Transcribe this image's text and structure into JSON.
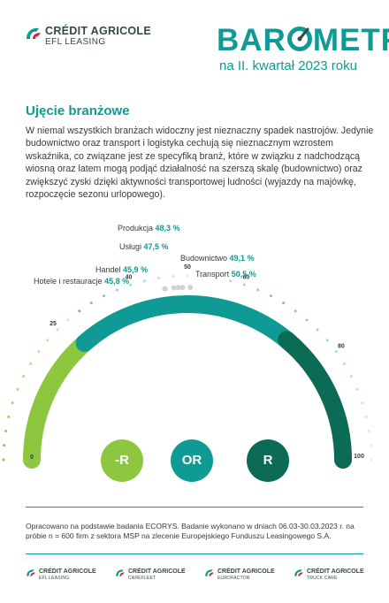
{
  "header": {
    "logo_line1": "CRÉDIT AGRICOLE",
    "logo_line2": "EFL LEASING",
    "title_pre": "BAR",
    "title_post": "METR",
    "subtitle": "na II. kwartał 2023 roku"
  },
  "section": {
    "heading": "Ujęcie branżowe",
    "paragraph": "W niemal wszystkich branżach widoczny jest nieznaczny spadek nastrojów. Jedynie budownictwo oraz transport i logistyka cechują się nieznacznym wzrostem wskaźnika, co związane jest ze specyfiką branż, które w związku z nadchodzącą wiosną oraz latem mogą podjąć działalność na szerszą skalę (budownictwo) oraz zwiększyć zyski dzięki aktywności transportowej ludności (wyjazdy na majówkę, rozpoczęcie sezonu urlopowego)."
  },
  "chart_data": {
    "type": "gauge",
    "range": [
      0,
      100
    ],
    "ticks": [
      "0",
      "25",
      "40",
      "50",
      "60",
      "80",
      "100"
    ],
    "zones": [
      {
        "label": "-R",
        "color": "#8dc63f"
      },
      {
        "label": "OR",
        "color": "#0f9a95"
      },
      {
        "label": "R",
        "color": "#0b6b54"
      }
    ],
    "sectors": [
      {
        "name": "Produkcja",
        "value": 48.3,
        "display": "48,3 %"
      },
      {
        "name": "Usługi",
        "value": 47.5,
        "display": "47,5 %"
      },
      {
        "name": "Budownictwo",
        "value": 49.1,
        "display": "49,1 %"
      },
      {
        "name": "Handel",
        "value": 45.9,
        "display": "45,9 %"
      },
      {
        "name": "Transport",
        "value": 50.5,
        "display": "50,5 %"
      },
      {
        "name": "Hotele i restauracje",
        "value": 45.8,
        "display": "45,8 %"
      }
    ]
  },
  "footer": {
    "note": "Opracowano na podstawie badania ECORYS. Badanie wykonano w dniach 06.03-30.03.2023 r. na próbie n = 600 firm z sektora MSP na zlecenie Europejskiego Funduszu Leasingowego S.A.",
    "logos": [
      {
        "line1": "CRÉDIT AGRICOLE",
        "line2": "EFL LEASING"
      },
      {
        "line1": "CRÉDIT AGRICOLE",
        "line2": "CAREFLEET"
      },
      {
        "line1": "CRÉDIT AGRICOLE",
        "line2": "EUROFACTOR"
      },
      {
        "line1": "CRÉDIT AGRICOLE",
        "line2": "TRUCK CARE"
      }
    ]
  },
  "colors": {
    "teal": "#0f9a95",
    "green_light": "#8dc63f",
    "green_dark": "#0b6b54",
    "logo": "#2f4b3f"
  }
}
